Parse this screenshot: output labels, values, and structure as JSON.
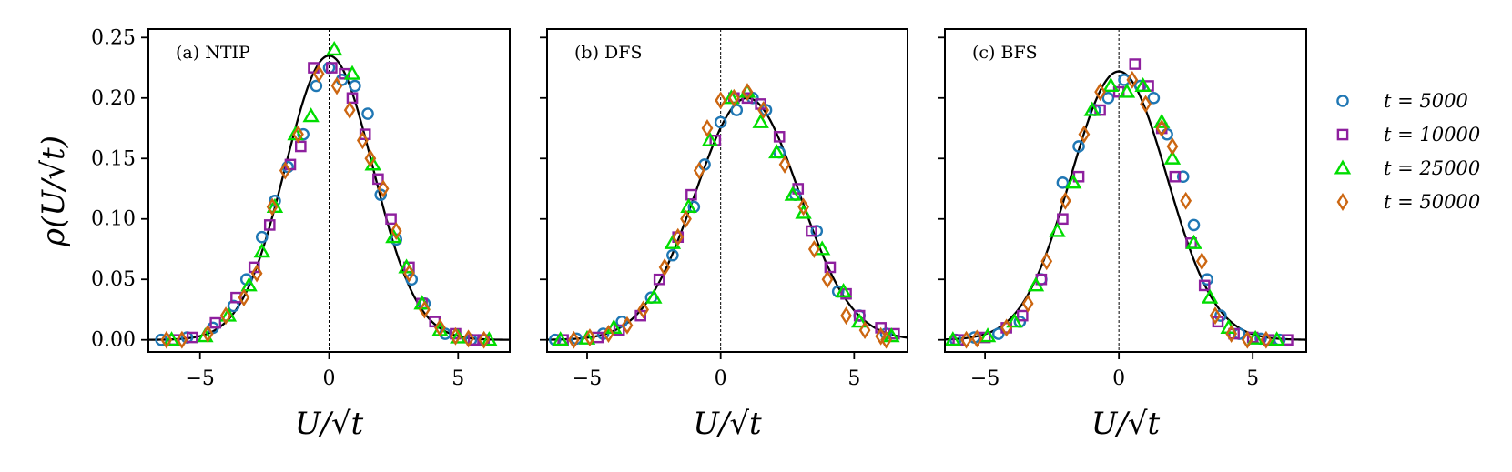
{
  "chart_data": [
    {
      "type": "scatter",
      "panel_label": "(a) NTIP",
      "xlabel": "U/√t",
      "ylabel": "ρ(U/√t)",
      "xlim": [
        -7,
        7
      ],
      "ylim": [
        -0.01,
        0.257
      ],
      "xticks": [
        -5,
        0,
        5
      ],
      "xtick_labels": [
        "−5",
        "0",
        "5"
      ],
      "yticks": [
        0,
        0.05,
        0.1,
        0.15,
        0.2,
        0.25
      ],
      "ytick_labels": [
        "0.00",
        "0.05",
        "0.10",
        "0.15",
        "0.20",
        "0.25"
      ],
      "reference_line_x": 0,
      "fit_curve": {
        "kind": "gaussian",
        "mu": 0,
        "sigma": 1.7,
        "peak": 0.235
      },
      "series": [
        {
          "name": "t = 5000",
          "marker": "circle",
          "color": "#1f77b4",
          "x": [
            -6.5,
            -5.5,
            -4.5,
            -3.7,
            -3.2,
            -2.6,
            -2.1,
            -1.6,
            -1.0,
            -0.5,
            0.0,
            0.5,
            1.0,
            1.5,
            2.0,
            2.6,
            3.2,
            3.7,
            4.5,
            5.5
          ],
          "y": [
            0.0,
            0.002,
            0.01,
            0.028,
            0.05,
            0.085,
            0.115,
            0.143,
            0.17,
            0.21,
            0.225,
            0.215,
            0.21,
            0.187,
            0.12,
            0.083,
            0.05,
            0.03,
            0.005,
            0.0
          ]
        },
        {
          "name": "t = 10000",
          "marker": "square",
          "color": "#8e1f9e",
          "x": [
            -6.0,
            -5.3,
            -4.4,
            -3.6,
            -2.9,
            -2.3,
            -1.5,
            -1.1,
            -0.6,
            0.1,
            0.6,
            0.9,
            1.4,
            1.9,
            2.4,
            3.1,
            3.6,
            4.1,
            4.9,
            5.6,
            6.0
          ],
          "y": [
            0.0,
            0.002,
            0.014,
            0.035,
            0.06,
            0.095,
            0.145,
            0.16,
            0.225,
            0.225,
            0.22,
            0.2,
            0.17,
            0.133,
            0.1,
            0.06,
            0.03,
            0.015,
            0.005,
            0.0,
            0.0
          ]
        },
        {
          "name": "t = 25000",
          "marker": "triangle",
          "color": "#00dd00",
          "x": [
            -6.1,
            -4.8,
            -3.9,
            -3.1,
            -2.6,
            -2.1,
            -1.3,
            -0.7,
            0.2,
            0.9,
            1.7,
            2.5,
            3.0,
            3.6,
            4.3,
            5.0,
            6.2
          ],
          "y": [
            0.0,
            0.003,
            0.02,
            0.045,
            0.073,
            0.11,
            0.17,
            0.185,
            0.24,
            0.22,
            0.145,
            0.085,
            0.06,
            0.03,
            0.008,
            0.002,
            0.0
          ]
        },
        {
          "name": "t = 50000",
          "marker": "diamond",
          "color": "#cc6611",
          "x": [
            -6.3,
            -5.7,
            -4.7,
            -4.0,
            -3.3,
            -2.8,
            -2.2,
            -1.7,
            -1.2,
            -0.4,
            0.3,
            0.8,
            1.3,
            1.6,
            2.1,
            2.6,
            3.1,
            3.7,
            4.3,
            4.9,
            5.4,
            6.0
          ],
          "y": [
            0.0,
            0.0,
            0.005,
            0.02,
            0.035,
            0.055,
            0.11,
            0.14,
            0.17,
            0.22,
            0.21,
            0.19,
            0.165,
            0.15,
            0.125,
            0.09,
            0.055,
            0.025,
            0.01,
            0.003,
            0.001,
            0.0
          ]
        }
      ]
    },
    {
      "type": "scatter",
      "panel_label": "(b) DFS",
      "xlabel": "U/√t",
      "xlim": [
        -6.5,
        7
      ],
      "ylim": [
        -0.01,
        0.257
      ],
      "xticks": [
        -5,
        0,
        5
      ],
      "xtick_labels": [
        "−5",
        "0",
        "5"
      ],
      "yticks": [
        0,
        0.05,
        0.1,
        0.15,
        0.2,
        0.25
      ],
      "reference_line_x": 0,
      "fit_curve": {
        "kind": "gaussian",
        "mu": 1.0,
        "sigma": 1.95,
        "peak": 0.2
      },
      "series": [
        {
          "name": "t = 5000",
          "marker": "circle",
          "color": "#1f77b4",
          "x": [
            -6.2,
            -5.4,
            -4.4,
            -3.7,
            -2.6,
            -1.8,
            -1.0,
            -0.6,
            0.0,
            0.6,
            1.2,
            1.7,
            2.2,
            2.8,
            3.6,
            4.4,
            5.2,
            6.2
          ],
          "y": [
            0.0,
            0.001,
            0.005,
            0.015,
            0.035,
            0.07,
            0.11,
            0.145,
            0.18,
            0.19,
            0.2,
            0.19,
            0.155,
            0.12,
            0.09,
            0.04,
            0.02,
            0.005
          ]
        },
        {
          "name": "t = 10000",
          "marker": "square",
          "color": "#8e1f9e",
          "x": [
            -5.9,
            -4.6,
            -3.8,
            -3.0,
            -2.3,
            -1.6,
            -1.1,
            -0.2,
            0.5,
            1.0,
            1.5,
            2.2,
            2.9,
            3.4,
            4.1,
            4.7,
            5.2,
            6.0,
            6.5
          ],
          "y": [
            0.0,
            0.002,
            0.008,
            0.02,
            0.05,
            0.085,
            0.12,
            0.165,
            0.2,
            0.2,
            0.195,
            0.168,
            0.125,
            0.09,
            0.06,
            0.038,
            0.02,
            0.01,
            0.005
          ]
        },
        {
          "name": "t = 25000",
          "marker": "triangle",
          "color": "#00dd00",
          "x": [
            -6.0,
            -5.0,
            -4.0,
            -2.5,
            -1.8,
            -1.2,
            -0.4,
            0.4,
            1.0,
            1.5,
            2.1,
            2.7,
            3.1,
            3.8,
            4.6,
            5.2,
            6.4
          ],
          "y": [
            0.0,
            0.001,
            0.01,
            0.035,
            0.08,
            0.11,
            0.165,
            0.2,
            0.205,
            0.18,
            0.155,
            0.12,
            0.105,
            0.075,
            0.04,
            0.015,
            0.003
          ]
        },
        {
          "name": "t = 50000",
          "marker": "diamond",
          "color": "#cc6611",
          "x": [
            -5.5,
            -4.9,
            -4.2,
            -3.5,
            -2.9,
            -2.1,
            -1.6,
            -1.3,
            -0.8,
            -0.5,
            0.0,
            0.5,
            1.0,
            1.6,
            2.4,
            3.1,
            3.5,
            4.0,
            4.7,
            5.4,
            6.0,
            6.2
          ],
          "y": [
            0.0,
            0.002,
            0.005,
            0.012,
            0.025,
            0.06,
            0.085,
            0.1,
            0.14,
            0.175,
            0.198,
            0.2,
            0.205,
            0.19,
            0.145,
            0.11,
            0.075,
            0.05,
            0.02,
            0.008,
            0.003,
            0.0
          ]
        }
      ]
    },
    {
      "type": "scatter",
      "panel_label": "(c) BFS",
      "xlabel": "U/√t",
      "xlim": [
        -6.5,
        7
      ],
      "ylim": [
        -0.01,
        0.257
      ],
      "xticks": [
        -5,
        0,
        5
      ],
      "xtick_labels": [
        "−5",
        "0",
        "5"
      ],
      "yticks": [
        0,
        0.05,
        0.1,
        0.15,
        0.2,
        0.25
      ],
      "reference_line_x": 0,
      "fit_curve": {
        "kind": "gaussian",
        "mu": 0,
        "sigma": 1.8,
        "peak": 0.222
      },
      "series": [
        {
          "name": "t = 5000",
          "marker": "circle",
          "color": "#1f77b4",
          "x": [
            -6.1,
            -5.4,
            -4.5,
            -3.7,
            -2.9,
            -2.1,
            -1.5,
            -0.9,
            -0.4,
            0.2,
            0.8,
            1.3,
            1.8,
            2.4,
            2.8,
            3.3,
            3.8,
            4.5,
            5.3,
            6.0
          ],
          "y": [
            0.0,
            0.002,
            0.005,
            0.015,
            0.05,
            0.13,
            0.16,
            0.19,
            0.2,
            0.215,
            0.21,
            0.2,
            0.17,
            0.135,
            0.095,
            0.05,
            0.02,
            0.005,
            0.001,
            0.0
          ]
        },
        {
          "name": "t = 10000",
          "marker": "square",
          "color": "#8e1f9e",
          "x": [
            -6.0,
            -5.0,
            -4.2,
            -3.6,
            -2.9,
            -2.1,
            -1.5,
            -0.7,
            0.0,
            0.6,
            1.1,
            1.6,
            2.1,
            2.7,
            3.2,
            3.7,
            4.3,
            5.0,
            5.6,
            6.3
          ],
          "y": [
            0.0,
            0.002,
            0.01,
            0.02,
            0.05,
            0.1,
            0.135,
            0.19,
            0.205,
            0.228,
            0.21,
            0.175,
            0.135,
            0.08,
            0.045,
            0.015,
            0.005,
            0.002,
            0.0,
            0.0
          ]
        },
        {
          "name": "t = 25000",
          "marker": "triangle",
          "color": "#00dd00",
          "x": [
            -6.2,
            -4.9,
            -3.9,
            -3.1,
            -2.3,
            -1.7,
            -1.0,
            -0.3,
            0.3,
            0.9,
            1.6,
            2.0,
            2.8,
            3.4,
            4.1,
            5.1,
            5.9
          ],
          "y": [
            0.0,
            0.003,
            0.015,
            0.045,
            0.09,
            0.13,
            0.19,
            0.21,
            0.205,
            0.21,
            0.18,
            0.15,
            0.08,
            0.035,
            0.01,
            0.001,
            0.0
          ]
        },
        {
          "name": "t = 50000",
          "marker": "diamond",
          "color": "#cc6611",
          "x": [
            -5.7,
            -5.3,
            -4.2,
            -3.4,
            -2.7,
            -2.0,
            -1.3,
            -0.7,
            0.5,
            1.0,
            1.6,
            2.0,
            2.5,
            3.1,
            3.6,
            4.2,
            4.8,
            5.5
          ],
          "y": [
            0.0,
            0.001,
            0.01,
            0.03,
            0.065,
            0.115,
            0.17,
            0.205,
            0.215,
            0.195,
            0.175,
            0.16,
            0.115,
            0.065,
            0.02,
            0.005,
            0.0,
            0.0
          ]
        }
      ]
    }
  ],
  "legend": [
    {
      "label": "t = 5000",
      "marker": "circle",
      "color": "#1f77b4"
    },
    {
      "label": "t = 10000",
      "marker": "square",
      "color": "#8e1f9e"
    },
    {
      "label": "t = 25000",
      "marker": "triangle",
      "color": "#00dd00"
    },
    {
      "label": "t = 50000",
      "marker": "diamond",
      "color": "#cc6611"
    }
  ]
}
